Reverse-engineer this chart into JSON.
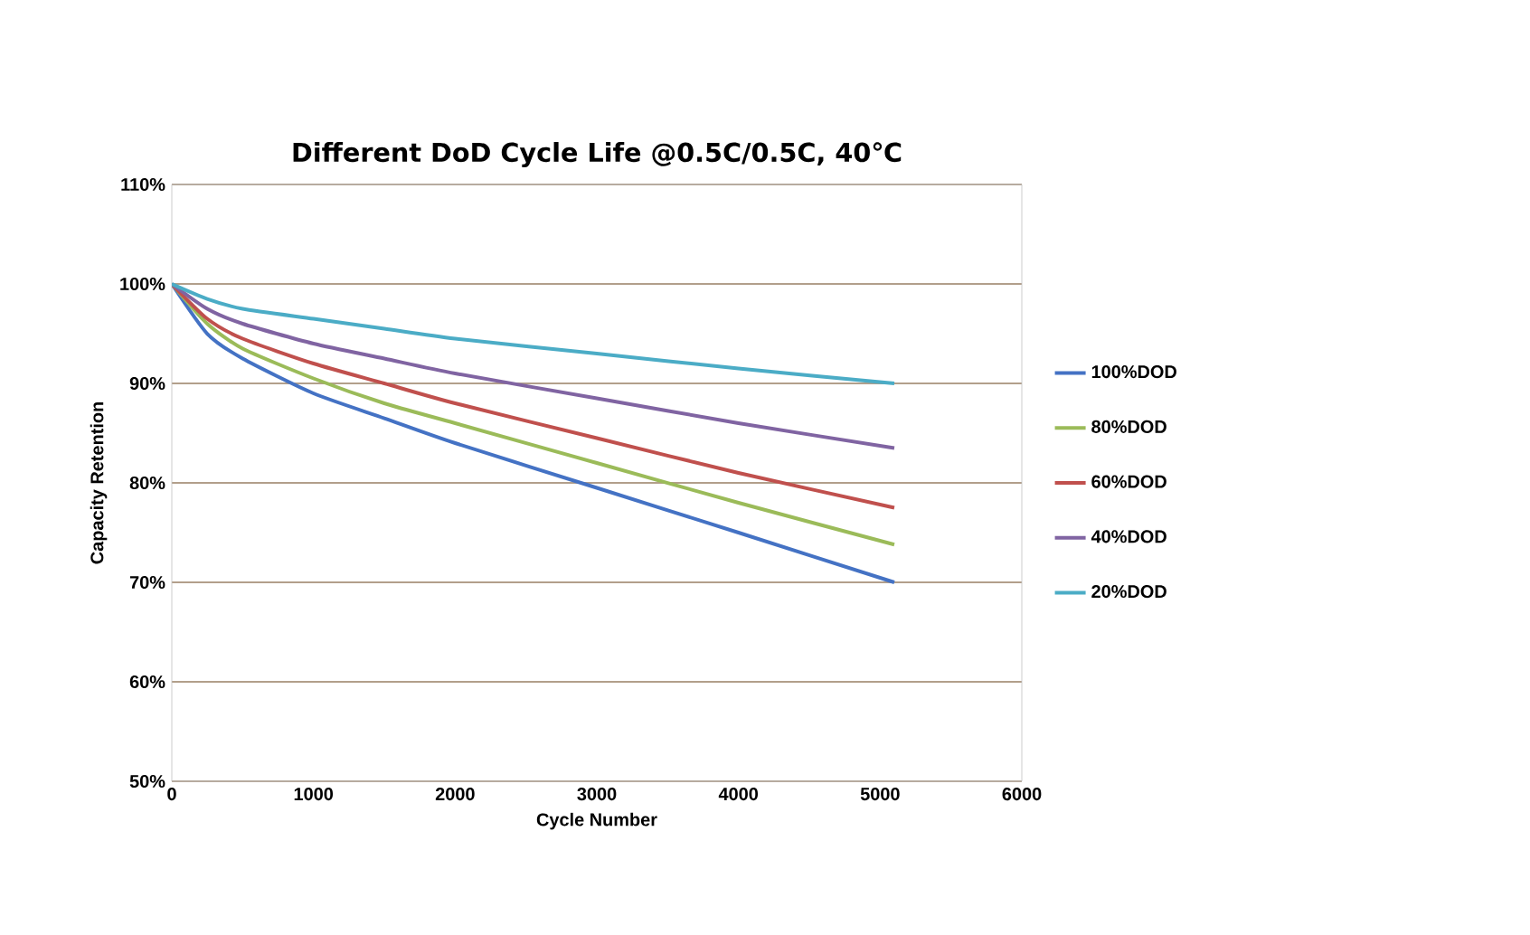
{
  "chart_data": {
    "type": "line",
    "title": "Different DoD Cycle Life @0.5C/0.5C, 40℃",
    "xlabel": "Cycle Number",
    "ylabel": "Capacity Retention",
    "x": [
      0,
      250,
      500,
      1000,
      1500,
      2000,
      3000,
      4000,
      5100
    ],
    "series": [
      {
        "name": "100%DOD",
        "color": "#4472c4",
        "values": [
          100,
          95,
          92.5,
          89,
          86.5,
          84,
          79.5,
          75,
          70
        ]
      },
      {
        "name": "80%DOD",
        "color": "#9bbb59",
        "values": [
          100,
          96,
          93.5,
          90.5,
          88,
          86,
          82,
          78,
          73.8
        ]
      },
      {
        "name": "60%DOD",
        "color": "#c0504d",
        "values": [
          100,
          96.5,
          94.5,
          92,
          90,
          88,
          84.5,
          81,
          77.5
        ]
      },
      {
        "name": "40%DOD",
        "color": "#8064a2",
        "values": [
          100,
          97.5,
          96,
          94,
          92.5,
          91,
          88.5,
          86,
          83.5
        ]
      },
      {
        "name": "20%DOD",
        "color": "#4bacc6",
        "values": [
          100,
          98.5,
          97.5,
          96.5,
          95.5,
          94.5,
          93,
          91.5,
          90
        ]
      }
    ],
    "xlim": [
      0,
      6000
    ],
    "xticks": [
      0,
      1000,
      2000,
      3000,
      4000,
      5000,
      6000
    ],
    "ylim": [
      50,
      110
    ],
    "yticks": [
      {
        "value": 50,
        "label": "50%"
      },
      {
        "value": 60,
        "label": "60%"
      },
      {
        "value": 70,
        "label": "70%"
      },
      {
        "value": 80,
        "label": "80%"
      },
      {
        "value": 90,
        "label": "90%"
      },
      {
        "value": 100,
        "label": "100%"
      },
      {
        "value": 110,
        "label": "110%"
      }
    ],
    "grid": "y",
    "legend": "right",
    "marker": "none",
    "line_style": "solid"
  }
}
